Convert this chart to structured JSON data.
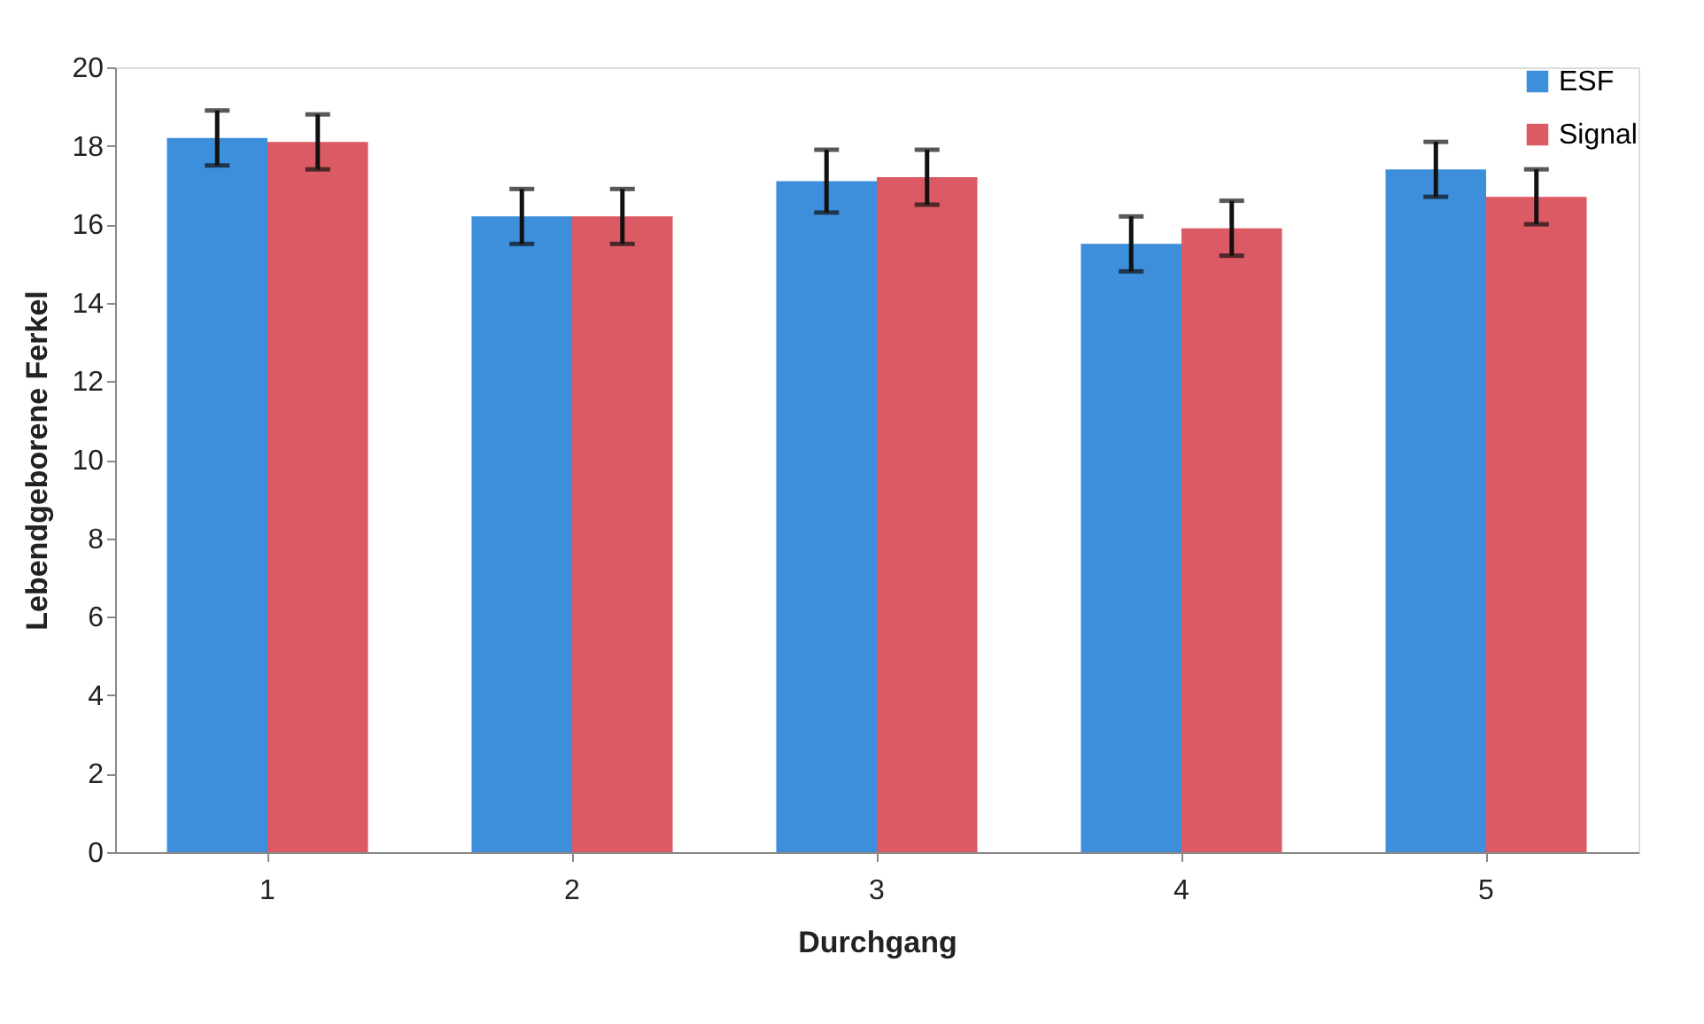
{
  "chart_data": {
    "type": "bar",
    "xlabel": "Durchgang",
    "ylabel": "Lebendgeborene Ferkel",
    "categories": [
      "1",
      "2",
      "3",
      "4",
      "5"
    ],
    "series": [
      {
        "name": "ESF",
        "color": "#3d8fdc",
        "values": [
          18.2,
          16.2,
          17.1,
          15.5,
          17.4
        ],
        "errors": [
          0.7,
          0.7,
          0.8,
          0.7,
          0.7
        ]
      },
      {
        "name": "Signal",
        "color": "#dc5a64",
        "values": [
          18.1,
          16.2,
          17.2,
          15.9,
          16.7
        ],
        "errors": [
          0.7,
          0.7,
          0.7,
          0.7,
          0.7
        ]
      }
    ],
    "ylim": [
      0,
      20
    ],
    "yticks": [
      0,
      2,
      4,
      6,
      8,
      10,
      12,
      14,
      16,
      18,
      20
    ],
    "grid": false,
    "legend": "top right"
  }
}
